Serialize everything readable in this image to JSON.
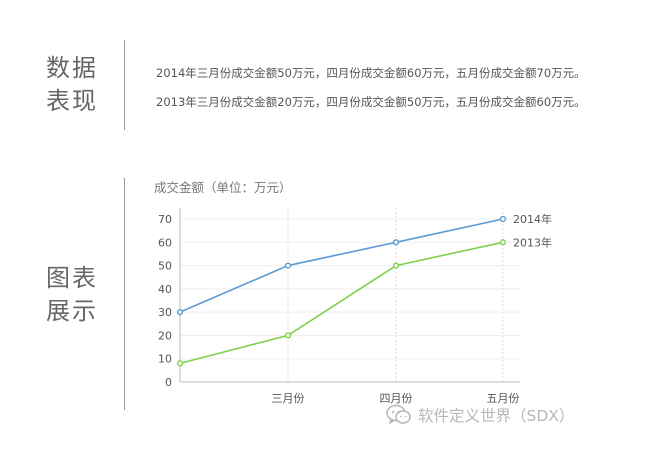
{
  "data_section": {
    "label_line1": "数据",
    "label_line2": "表现",
    "lines": [
      "2014年三月份成交金额50万元，四月份成交金额60万元，五月份成交金额70万元。",
      "2013年三月份成交金额20万元，四月份成交金额50万元，五月份成交金额60万元。"
    ]
  },
  "chart_section": {
    "label_line1": "图表",
    "label_line2": "展示"
  },
  "watermark": {
    "text": "软件定义世界（SDX）",
    "icon": "wechat-icon"
  },
  "chart_data": {
    "type": "line",
    "title": "成交金额（单位：万元）",
    "xlabel": "",
    "ylabel": "",
    "categories": [
      "",
      "三月份",
      "四月份",
      "五月份"
    ],
    "ylim": [
      0,
      70
    ],
    "yticks": [
      0,
      10,
      20,
      30,
      40,
      50,
      60,
      70
    ],
    "grid": true,
    "legend": "end-of-line labels",
    "series": [
      {
        "name": "2014年",
        "color": "#5b9bd5",
        "values": [
          30,
          50,
          60,
          70
        ]
      },
      {
        "name": "2013年",
        "color": "#7ed04b",
        "values": [
          8,
          20,
          50,
          60
        ]
      }
    ]
  }
}
